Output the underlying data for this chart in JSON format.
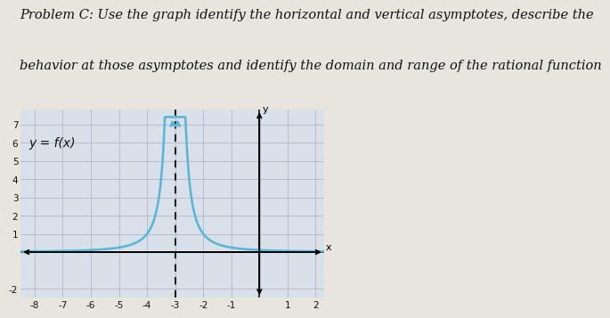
{
  "title_line1": "Problem C: Use the graph identify the horizontal and vertical asymptotes, describe the",
  "title_line2": "behavior at those asymptotes and identify the domain and range of the rational function",
  "label": "y = f(x)",
  "vertical_asymptote": -3,
  "xlim": [
    -8.5,
    2.3
  ],
  "ylim": [
    -2.5,
    7.8
  ],
  "xticks": [
    -8,
    -7,
    -6,
    -5,
    -4,
    -3,
    -2,
    -1,
    1,
    2
  ],
  "yticks": [
    -2,
    1,
    2,
    3,
    4,
    5,
    6,
    7
  ],
  "curve_color": "#5ab4d6",
  "asymptote_color": "#222222",
  "grid_color": "#b0b8c8",
  "background_color": "#d8e0ea",
  "page_color": "#e8e4de",
  "text_color": "#111111",
  "title_fontsize": 10.5,
  "label_fontsize": 10,
  "tick_fontsize": 7.5,
  "clip_ymax": 7.4,
  "clip_ymin": -2.3,
  "curve_lw": 1.8,
  "asymptote_lw": 1.5
}
